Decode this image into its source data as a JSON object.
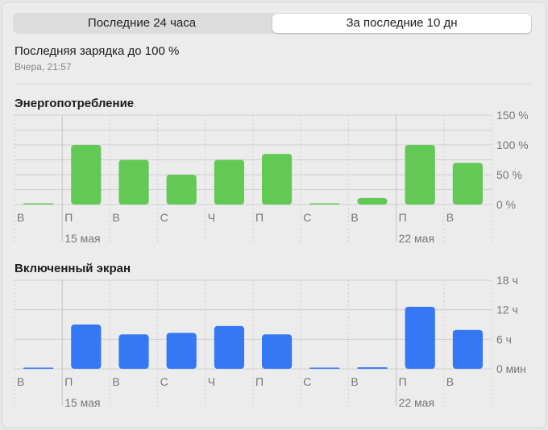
{
  "tabs": [
    {
      "label": "Последние 24 часа",
      "selected": false
    },
    {
      "label": "За последние 10 дн",
      "selected": true
    }
  ],
  "last_charge": {
    "title": "Последняя зарядка до 100 %",
    "time": "Вчера, 21:57"
  },
  "chart_data": [
    {
      "type": "bar",
      "title": "Энергопотребление",
      "categories": [
        "В",
        "П",
        "В",
        "С",
        "Ч",
        "П",
        "С",
        "В",
        "П",
        "В"
      ],
      "date_labels": [
        {
          "index": 1,
          "label": "15 мая"
        },
        {
          "index": 8,
          "label": "22 мая"
        }
      ],
      "values": [
        1,
        100,
        75,
        50,
        75,
        85,
        0,
        11,
        100,
        70
      ],
      "ylim": [
        0,
        150
      ],
      "yticks": [
        0,
        50,
        100,
        150
      ],
      "ytick_labels": [
        "0 %",
        "50 %",
        "100 %",
        "150 %"
      ],
      "grid_step": 25,
      "color": "#62c955"
    },
    {
      "type": "bar",
      "title": "Включенный экран",
      "categories": [
        "В",
        "П",
        "В",
        "С",
        "Ч",
        "П",
        "С",
        "В",
        "П",
        "В"
      ],
      "date_labels": [
        {
          "index": 1,
          "label": "15 мая"
        },
        {
          "index": 8,
          "label": "22 мая"
        }
      ],
      "values": [
        0.1,
        9.0,
        7.0,
        7.3,
        8.7,
        7.0,
        0,
        0.3,
        12.6,
        7.9
      ],
      "unit": "h",
      "ylim": [
        0,
        18
      ],
      "yticks": [
        0,
        6,
        12,
        18
      ],
      "ytick_labels": [
        "0 мин",
        "6 ч",
        "12 ч",
        "18 ч"
      ],
      "grid_step": 6,
      "color": "#3478f6"
    }
  ]
}
